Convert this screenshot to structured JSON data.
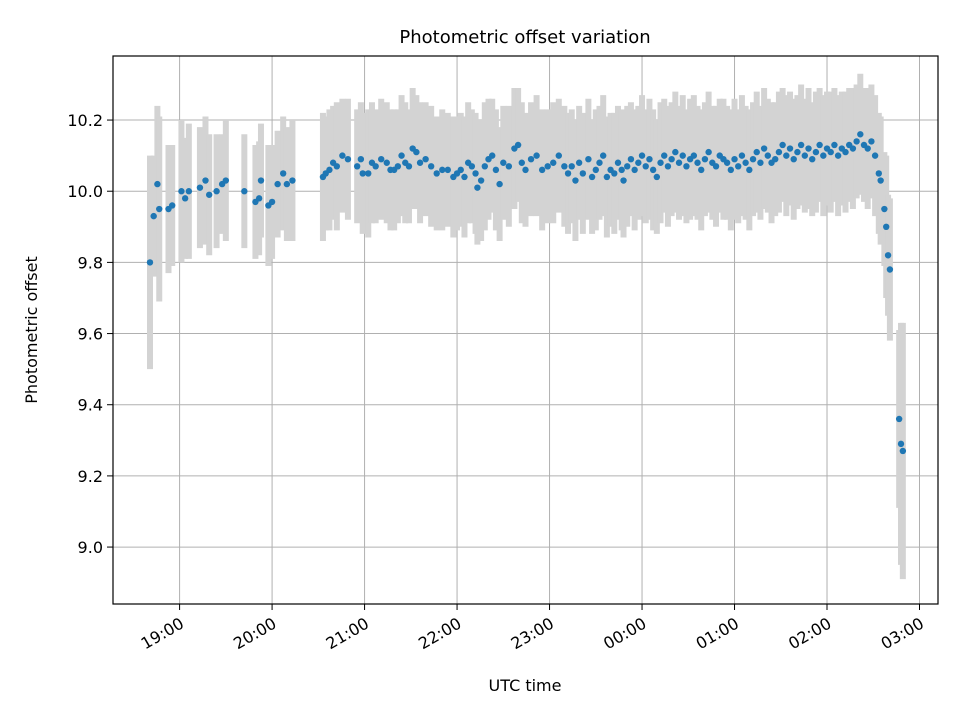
{
  "chart_data": {
    "type": "scatter",
    "title": "Photometric offset variation",
    "xlabel": "UTC time",
    "ylabel": "Photometric offset",
    "x_unit": "UTC hours since 19:00 (values after 24 are past midnight)",
    "xlim": [
      -0.72,
      8.2
    ],
    "ylim": [
      8.84,
      10.38
    ],
    "x_ticks": [
      {
        "value": 0,
        "label": "19:00"
      },
      {
        "value": 1,
        "label": "20:00"
      },
      {
        "value": 2,
        "label": "21:00"
      },
      {
        "value": 3,
        "label": "22:00"
      },
      {
        "value": 4,
        "label": "23:00"
      },
      {
        "value": 5,
        "label": "00:00"
      },
      {
        "value": 6,
        "label": "01:00"
      },
      {
        "value": 7,
        "label": "02:00"
      },
      {
        "value": 8,
        "label": "03:00"
      }
    ],
    "y_ticks": [
      {
        "value": 9.0,
        "label": "9.0"
      },
      {
        "value": 9.2,
        "label": "9.2"
      },
      {
        "value": 9.4,
        "label": "9.4"
      },
      {
        "value": 9.6,
        "label": "9.6"
      },
      {
        "value": 9.8,
        "label": "9.8"
      },
      {
        "value": 10.0,
        "label": "10.0"
      },
      {
        "value": 10.2,
        "label": "10.2"
      }
    ],
    "grid": true,
    "point_color": "#1f77b4",
    "errorbar_color": "#d3d3d3",
    "series": [
      {
        "points": [
          [
            -0.32,
            9.8,
            0.3
          ],
          [
            -0.28,
            9.93,
            0.17
          ],
          [
            -0.24,
            10.02,
            0.22
          ],
          [
            -0.22,
            9.95,
            0.26
          ],
          [
            -0.12,
            9.95,
            0.18
          ],
          [
            -0.08,
            9.96,
            0.17
          ],
          [
            0.02,
            10.0,
            0.2
          ],
          [
            0.06,
            9.98,
            0.17
          ],
          [
            0.1,
            10.0,
            0.19
          ],
          [
            0.22,
            10.01,
            0.17
          ],
          [
            0.28,
            10.03,
            0.18
          ],
          [
            0.32,
            9.99,
            0.17
          ],
          [
            0.4,
            10.0,
            0.16
          ],
          [
            0.46,
            10.02,
            0.14
          ],
          [
            0.5,
            10.03,
            0.17
          ],
          [
            0.7,
            10.0,
            0.16
          ],
          [
            0.82,
            9.97,
            0.16
          ],
          [
            0.86,
            9.98,
            0.16
          ],
          [
            0.88,
            10.03,
            0.16
          ],
          [
            0.96,
            9.96,
            0.17
          ],
          [
            1.0,
            9.97,
            0.16
          ],
          [
            1.06,
            10.02,
            0.15
          ],
          [
            1.12,
            10.05,
            0.16
          ],
          [
            1.16,
            10.02,
            0.16
          ],
          [
            1.22,
            10.03,
            0.17
          ],
          [
            1.55,
            10.04,
            0.18
          ],
          [
            1.58,
            10.05,
            0.16
          ],
          [
            1.62,
            10.06,
            0.17
          ],
          [
            1.66,
            10.08,
            0.16
          ],
          [
            1.7,
            10.07,
            0.18
          ],
          [
            1.76,
            10.1,
            0.16
          ],
          [
            1.82,
            10.09,
            0.17
          ],
          [
            1.92,
            10.07,
            0.16
          ],
          [
            1.96,
            10.09,
            0.16
          ],
          [
            1.98,
            10.05,
            0.17
          ],
          [
            2.04,
            10.05,
            0.18
          ],
          [
            2.08,
            10.08,
            0.17
          ],
          [
            2.12,
            10.07,
            0.16
          ],
          [
            2.18,
            10.09,
            0.17
          ],
          [
            2.24,
            10.08,
            0.17
          ],
          [
            2.28,
            10.06,
            0.17
          ],
          [
            2.32,
            10.06,
            0.17
          ],
          [
            2.36,
            10.07,
            0.16
          ],
          [
            2.4,
            10.1,
            0.17
          ],
          [
            2.44,
            10.08,
            0.17
          ],
          [
            2.48,
            10.07,
            0.16
          ],
          [
            2.52,
            10.12,
            0.17
          ],
          [
            2.56,
            10.11,
            0.16
          ],
          [
            2.6,
            10.08,
            0.17
          ],
          [
            2.66,
            10.09,
            0.16
          ],
          [
            2.72,
            10.07,
            0.17
          ],
          [
            2.78,
            10.05,
            0.16
          ],
          [
            2.84,
            10.06,
            0.17
          ],
          [
            2.9,
            10.06,
            0.16
          ],
          [
            2.96,
            10.04,
            0.17
          ],
          [
            3.0,
            10.05,
            0.16
          ],
          [
            3.04,
            10.06,
            0.16
          ],
          [
            3.08,
            10.04,
            0.17
          ],
          [
            3.12,
            10.08,
            0.17
          ],
          [
            3.16,
            10.07,
            0.16
          ],
          [
            3.2,
            10.05,
            0.17
          ],
          [
            3.22,
            10.01,
            0.16
          ],
          [
            3.26,
            10.03,
            0.17
          ],
          [
            3.3,
            10.07,
            0.18
          ],
          [
            3.34,
            10.09,
            0.17
          ],
          [
            3.38,
            10.1,
            0.16
          ],
          [
            3.42,
            10.06,
            0.17
          ],
          [
            3.46,
            10.02,
            0.16
          ],
          [
            3.5,
            10.08,
            0.16
          ],
          [
            3.56,
            10.07,
            0.17
          ],
          [
            3.62,
            10.12,
            0.17
          ],
          [
            3.66,
            10.13,
            0.16
          ],
          [
            3.7,
            10.08,
            0.17
          ],
          [
            3.74,
            10.06,
            0.16
          ],
          [
            3.8,
            10.09,
            0.16
          ],
          [
            3.86,
            10.1,
            0.17
          ],
          [
            3.92,
            10.06,
            0.17
          ],
          [
            3.98,
            10.07,
            0.16
          ],
          [
            4.04,
            10.08,
            0.17
          ],
          [
            4.1,
            10.1,
            0.16
          ],
          [
            4.16,
            10.07,
            0.17
          ],
          [
            4.2,
            10.05,
            0.17
          ],
          [
            4.24,
            10.07,
            0.16
          ],
          [
            4.28,
            10.03,
            0.17
          ],
          [
            4.32,
            10.08,
            0.16
          ],
          [
            4.36,
            10.05,
            0.17
          ],
          [
            4.42,
            10.09,
            0.17
          ],
          [
            4.46,
            10.04,
            0.16
          ],
          [
            4.5,
            10.06,
            0.17
          ],
          [
            4.54,
            10.08,
            0.16
          ],
          [
            4.58,
            10.1,
            0.17
          ],
          [
            4.62,
            10.04,
            0.17
          ],
          [
            4.66,
            10.06,
            0.16
          ],
          [
            4.7,
            10.05,
            0.17
          ],
          [
            4.74,
            10.08,
            0.16
          ],
          [
            4.78,
            10.06,
            0.17
          ],
          [
            4.8,
            10.03,
            0.16
          ],
          [
            4.84,
            10.07,
            0.17
          ],
          [
            4.88,
            10.09,
            0.16
          ],
          [
            4.92,
            10.06,
            0.17
          ],
          [
            4.96,
            10.08,
            0.16
          ],
          [
            5.0,
            10.1,
            0.17
          ],
          [
            5.04,
            10.07,
            0.16
          ],
          [
            5.08,
            10.09,
            0.17
          ],
          [
            5.12,
            10.06,
            0.17
          ],
          [
            5.16,
            10.04,
            0.16
          ],
          [
            5.2,
            10.08,
            0.17
          ],
          [
            5.24,
            10.1,
            0.16
          ],
          [
            5.28,
            10.07,
            0.17
          ],
          [
            5.32,
            10.09,
            0.16
          ],
          [
            5.36,
            10.11,
            0.17
          ],
          [
            5.4,
            10.08,
            0.16
          ],
          [
            5.44,
            10.1,
            0.17
          ],
          [
            5.48,
            10.07,
            0.16
          ],
          [
            5.52,
            10.09,
            0.17
          ],
          [
            5.56,
            10.1,
            0.17
          ],
          [
            5.6,
            10.08,
            0.16
          ],
          [
            5.64,
            10.06,
            0.17
          ],
          [
            5.68,
            10.09,
            0.16
          ],
          [
            5.72,
            10.11,
            0.17
          ],
          [
            5.76,
            10.08,
            0.16
          ],
          [
            5.8,
            10.07,
            0.17
          ],
          [
            5.84,
            10.1,
            0.16
          ],
          [
            5.88,
            10.09,
            0.17
          ],
          [
            5.92,
            10.08,
            0.16
          ],
          [
            5.96,
            10.06,
            0.17
          ],
          [
            6.0,
            10.09,
            0.17
          ],
          [
            6.04,
            10.07,
            0.16
          ],
          [
            6.08,
            10.1,
            0.17
          ],
          [
            6.12,
            10.08,
            0.16
          ],
          [
            6.16,
            10.06,
            0.17
          ],
          [
            6.2,
            10.09,
            0.16
          ],
          [
            6.24,
            10.11,
            0.17
          ],
          [
            6.28,
            10.08,
            0.16
          ],
          [
            6.32,
            10.12,
            0.17
          ],
          [
            6.36,
            10.1,
            0.16
          ],
          [
            6.4,
            10.08,
            0.17
          ],
          [
            6.44,
            10.09,
            0.16
          ],
          [
            6.48,
            10.11,
            0.17
          ],
          [
            6.52,
            10.13,
            0.16
          ],
          [
            6.56,
            10.1,
            0.17
          ],
          [
            6.6,
            10.12,
            0.16
          ],
          [
            6.64,
            10.09,
            0.17
          ],
          [
            6.68,
            10.11,
            0.16
          ],
          [
            6.72,
            10.13,
            0.17
          ],
          [
            6.76,
            10.1,
            0.16
          ],
          [
            6.8,
            10.12,
            0.17
          ],
          [
            6.84,
            10.09,
            0.16
          ],
          [
            6.88,
            10.11,
            0.17
          ],
          [
            6.92,
            10.13,
            0.16
          ],
          [
            6.96,
            10.1,
            0.17
          ],
          [
            7.0,
            10.12,
            0.16
          ],
          [
            7.04,
            10.11,
            0.17
          ],
          [
            7.08,
            10.13,
            0.16
          ],
          [
            7.12,
            10.1,
            0.17
          ],
          [
            7.16,
            10.12,
            0.16
          ],
          [
            7.2,
            10.11,
            0.17
          ],
          [
            7.24,
            10.13,
            0.16
          ],
          [
            7.28,
            10.12,
            0.17
          ],
          [
            7.32,
            10.14,
            0.16
          ],
          [
            7.36,
            10.16,
            0.17
          ],
          [
            7.4,
            10.13,
            0.16
          ],
          [
            7.44,
            10.12,
            0.17
          ],
          [
            7.48,
            10.14,
            0.16
          ],
          [
            7.52,
            10.1,
            0.17
          ],
          [
            7.56,
            10.05,
            0.17
          ],
          [
            7.58,
            10.03,
            0.18
          ],
          [
            7.62,
            9.95,
            0.16
          ],
          [
            7.64,
            9.9,
            0.2
          ],
          [
            7.66,
            9.82,
            0.17
          ],
          [
            7.68,
            9.78,
            0.2
          ],
          [
            7.78,
            9.36,
            0.25
          ],
          [
            7.8,
            9.29,
            0.34
          ],
          [
            7.82,
            9.27,
            0.36
          ]
        ]
      }
    ]
  }
}
